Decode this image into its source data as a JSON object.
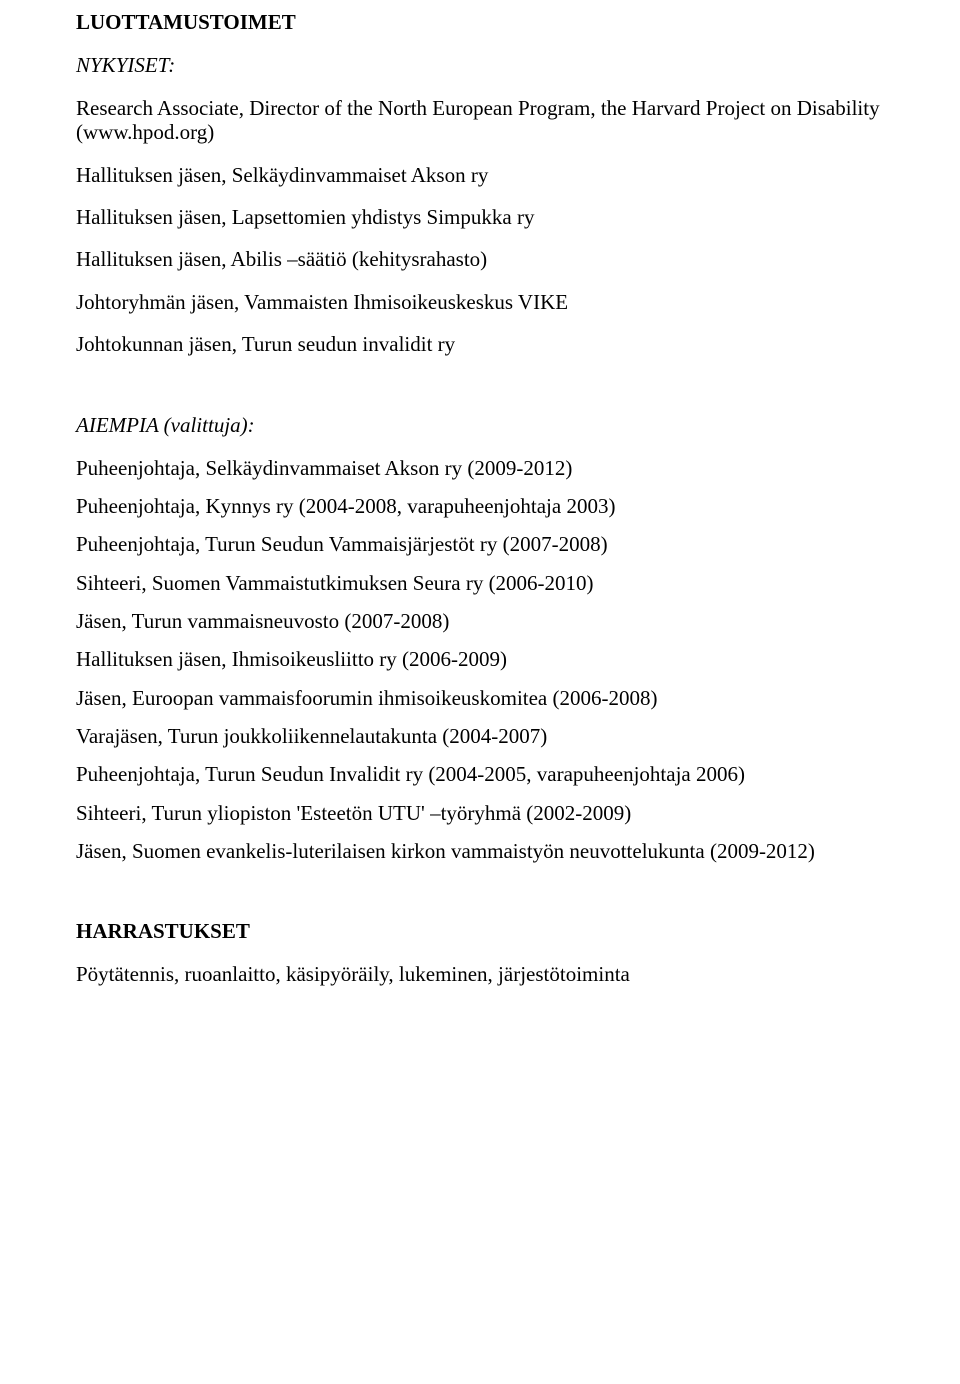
{
  "sections": {
    "luottamustoimet": {
      "heading": "LUOTTAMUSTOIMET",
      "nykyiset": {
        "label": "NYKYISET:",
        "items": [
          "Research Associate, Director of the North European Program, the Harvard Project on Disability (www.hpod.org)",
          "Hallituksen jäsen, Selkäydinvammaiset Akson ry",
          "Hallituksen jäsen, Lapsettomien yhdistys Simpukka ry",
          "Hallituksen jäsen, Abilis –säätiö (kehitysrahasto)",
          "Johtoryhmän jäsen, Vammaisten Ihmisoikeuskeskus VIKE",
          "Johtokunnan jäsen, Turun seudun invalidit ry"
        ]
      },
      "aiempia": {
        "label": "AIEMPIA (valittuja):",
        "items": [
          "Puheenjohtaja, Selkäydinvammaiset Akson ry (2009-2012)",
          "Puheenjohtaja, Kynnys ry (2004-2008, varapuheenjohtaja 2003)",
          "Puheenjohtaja, Turun Seudun Vammaisjärjestöt ry (2007-2008)",
          "Sihteeri, Suomen Vammaistutkimuksen Seura ry (2006-2010)",
          "Jäsen, Turun vammaisneuvosto (2007-2008)",
          "Hallituksen jäsen, Ihmisoikeusliitto ry (2006-2009)",
          "Jäsen, Euroopan vammaisfoorumin ihmisoikeuskomitea (2006-2008)",
          "Varajäsen, Turun joukkoliikennelautakunta (2004-2007)",
          "Puheenjohtaja, Turun Seudun Invalidit ry (2004-2005, varapuheenjohtaja 2006)",
          "Sihteeri, Turun yliopiston 'Esteetön UTU' –työryhmä (2002-2009)",
          "Jäsen, Suomen evankelis-luterilaisen kirkon vammaistyön neuvottelukunta (2009-2012)"
        ]
      }
    },
    "harrastukset": {
      "heading": "HARRASTUKSET",
      "text": "Pöytätennis, ruoanlaitto, käsipyöräily, lukeminen, järjestötoiminta"
    }
  }
}
